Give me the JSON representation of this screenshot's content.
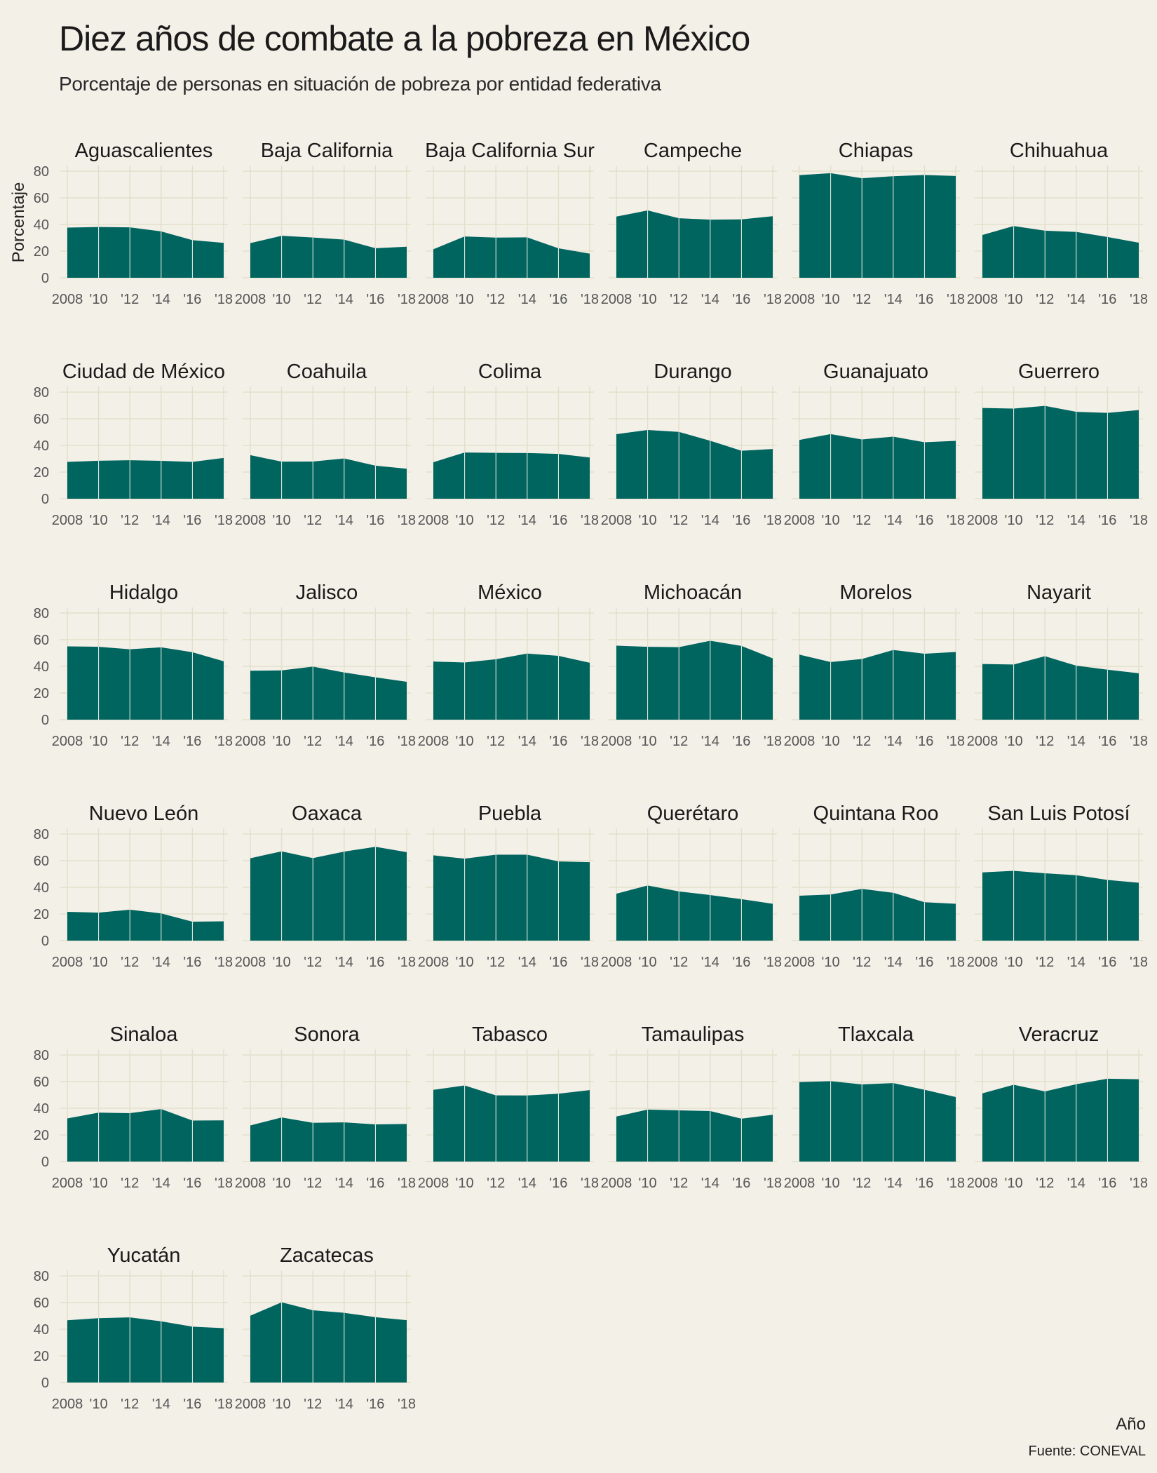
{
  "title": "Diez años de combate a la pobreza en México",
  "subtitle": "Porcentaje de personas en situación de pobreza por entidad federativa",
  "caption": "Fuente: CONEVAL",
  "colors": {
    "background": "#f3f0e8",
    "area": "#00645f",
    "grid": "#e4dfcb",
    "divider": "#f3f0e8"
  },
  "chart_data": {
    "type": "area",
    "layout": "facet-grid",
    "xlabel": "Año",
    "ylabel": "Porcentaje",
    "x": [
      2008,
      2010,
      2012,
      2014,
      2016,
      2018
    ],
    "x_tick_labels": [
      "2008",
      "'10",
      "'12",
      "'14",
      "'16",
      "'18"
    ],
    "ylim": [
      0,
      80
    ],
    "y_ticks": [
      0,
      20,
      40,
      60,
      80
    ],
    "grid": true,
    "series": [
      {
        "name": "Aguascalientes",
        "values": [
          37.6,
          38.1,
          37.8,
          34.8,
          28.2,
          26.2
        ]
      },
      {
        "name": "Baja California",
        "values": [
          26.0,
          31.5,
          30.2,
          28.6,
          22.2,
          23.3
        ]
      },
      {
        "name": "Baja California Sur",
        "values": [
          21.4,
          31.0,
          30.1,
          30.3,
          22.1,
          18.1
        ]
      },
      {
        "name": "Campeche",
        "values": [
          45.9,
          50.5,
          44.7,
          43.6,
          43.8,
          46.2
        ]
      },
      {
        "name": "Chiapas",
        "values": [
          77.0,
          78.5,
          74.7,
          76.2,
          77.1,
          76.4
        ]
      },
      {
        "name": "Chihuahua",
        "values": [
          32.1,
          38.8,
          35.3,
          34.4,
          30.6,
          26.3
        ]
      },
      {
        "name": "Ciudad de México",
        "values": [
          27.6,
          28.5,
          28.9,
          28.4,
          27.6,
          30.6
        ]
      },
      {
        "name": "Coahuila",
        "values": [
          32.7,
          27.8,
          27.9,
          30.2,
          24.8,
          22.5
        ]
      },
      {
        "name": "Colima",
        "values": [
          27.4,
          34.7,
          34.4,
          34.3,
          33.6,
          30.9
        ]
      },
      {
        "name": "Durango",
        "values": [
          48.4,
          51.6,
          50.1,
          43.5,
          36.0,
          37.3
        ]
      },
      {
        "name": "Guanajuato",
        "values": [
          44.1,
          48.5,
          44.5,
          46.6,
          42.4,
          43.4
        ]
      },
      {
        "name": "Guerrero",
        "values": [
          68.1,
          67.6,
          69.7,
          65.2,
          64.4,
          66.5
        ]
      },
      {
        "name": "Hidalgo",
        "values": [
          55.0,
          54.7,
          52.8,
          54.3,
          50.6,
          43.8
        ]
      },
      {
        "name": "Jalisco",
        "values": [
          36.7,
          37.0,
          39.8,
          35.4,
          31.8,
          28.4
        ]
      },
      {
        "name": "México",
        "values": [
          43.6,
          42.9,
          45.3,
          49.6,
          47.9,
          42.7
        ]
      },
      {
        "name": "Michoacán",
        "values": [
          55.5,
          54.7,
          54.4,
          59.2,
          55.3,
          46.0
        ]
      },
      {
        "name": "Morelos",
        "values": [
          48.8,
          43.2,
          45.5,
          52.3,
          49.5,
          50.8
        ]
      },
      {
        "name": "Nayarit",
        "values": [
          41.8,
          41.4,
          47.6,
          40.5,
          37.5,
          34.8
        ]
      },
      {
        "name": "Nuevo León",
        "values": [
          21.6,
          21.0,
          23.2,
          20.4,
          14.2,
          14.5
        ]
      },
      {
        "name": "Oaxaca",
        "values": [
          61.8,
          67.0,
          61.9,
          66.8,
          70.4,
          66.4
        ]
      },
      {
        "name": "Puebla",
        "values": [
          64.0,
          61.5,
          64.5,
          64.5,
          59.4,
          58.9
        ]
      },
      {
        "name": "Querétaro",
        "values": [
          35.2,
          41.4,
          36.9,
          34.2,
          31.1,
          27.6
        ]
      },
      {
        "name": "Quintana Roo",
        "values": [
          33.7,
          34.6,
          38.8,
          35.9,
          28.8,
          27.6
        ]
      },
      {
        "name": "San Luis Potosí",
        "values": [
          51.2,
          52.4,
          50.5,
          49.1,
          45.5,
          43.4
        ]
      },
      {
        "name": "Sinaloa",
        "values": [
          32.4,
          36.7,
          36.3,
          39.4,
          30.8,
          30.9
        ]
      },
      {
        "name": "Sonora",
        "values": [
          27.1,
          33.1,
          29.1,
          29.4,
          27.9,
          28.2
        ]
      },
      {
        "name": "Tabasco",
        "values": [
          53.8,
          57.1,
          49.7,
          49.6,
          50.9,
          53.6
        ]
      },
      {
        "name": "Tamaulipas",
        "values": [
          33.8,
          39.0,
          38.4,
          37.9,
          32.2,
          35.1
        ]
      },
      {
        "name": "Tlaxcala",
        "values": [
          59.6,
          60.3,
          57.9,
          58.9,
          53.9,
          48.4
        ]
      },
      {
        "name": "Veracruz",
        "values": [
          51.2,
          57.6,
          52.6,
          58.0,
          62.2,
          61.8
        ]
      },
      {
        "name": "Yucatán",
        "values": [
          46.7,
          48.3,
          48.9,
          45.9,
          41.9,
          40.8
        ]
      },
      {
        "name": "Zacatecas",
        "values": [
          50.1,
          60.2,
          54.2,
          52.3,
          49.0,
          46.8
        ]
      }
    ]
  }
}
